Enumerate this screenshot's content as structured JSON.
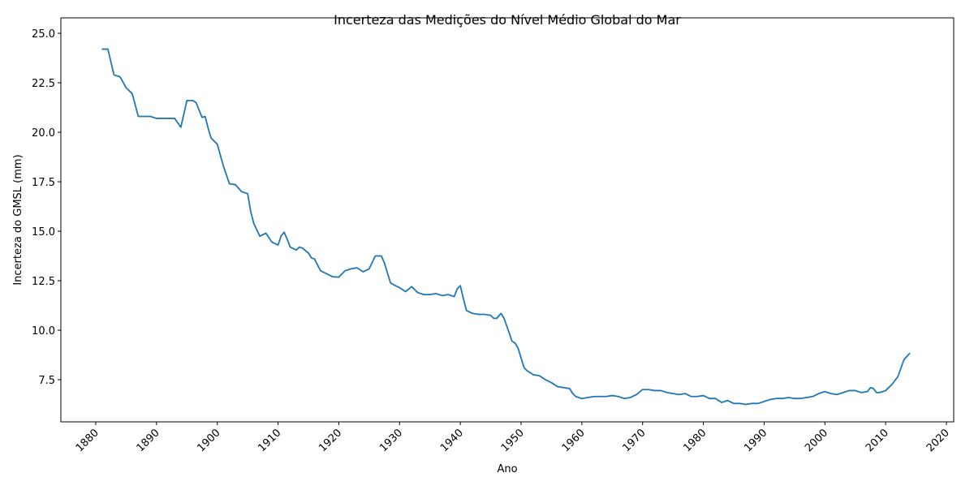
{
  "chart_data": {
    "type": "line",
    "title": "Incerteza das Medições do Nível Médio Global do Mar",
    "x_label": "Ano",
    "y_label": "Incerteza do GMSL (mm)",
    "grid": false,
    "xlim": [
      1874.26,
      2021.2
    ],
    "ylim": [
      5.37,
      25.78
    ],
    "xticks": [
      1880,
      1890,
      1900,
      1910,
      1920,
      1930,
      1940,
      1950,
      1960,
      1970,
      1980,
      1990,
      2000,
      2010,
      2020
    ],
    "yticks": [
      7.5,
      {
        "value": 10,
        "label": "10.0"
      },
      12.5,
      {
        "value": 15,
        "label": "15.0"
      },
      17.5,
      {
        "value": 20,
        "label": "20.0"
      },
      22.5,
      {
        "value": 25,
        "label": "25.0"
      }
    ],
    "series": [
      {
        "color": "#1f77b4",
        "x": [
          1881,
          1882,
          1883,
          1884,
          1885,
          1886,
          1887,
          1888,
          1889,
          1890,
          1891,
          1892,
          1893,
          1894,
          1895,
          1896,
          1896.5,
          1897.5,
          1898,
          1898.5,
          1899,
          1900,
          1901,
          1902,
          1903,
          1904,
          1905,
          1905.5,
          1906,
          1907,
          1908,
          1909,
          1910,
          1910.5,
          1911,
          1911.5,
          1912,
          1913,
          1913.5,
          1914,
          1915,
          1915.5,
          1916,
          1917,
          1918,
          1919,
          1920,
          1921,
          1922,
          1923,
          1924,
          1925,
          1926,
          1927,
          1927.5,
          1928,
          1928.5,
          1929,
          1930,
          1931,
          1932,
          1933,
          1934,
          1935,
          1936,
          1937,
          1938,
          1939,
          1939.5,
          1940,
          1940.5,
          1941,
          1942,
          1943,
          1944,
          1945,
          1945.5,
          1946,
          1946.7,
          1947.2,
          1948,
          1948.5,
          1949,
          1949.5,
          1950,
          1950.5,
          1951,
          1952,
          1953,
          1954,
          1955,
          1956,
          1957,
          1958,
          1958.5,
          1959,
          1960,
          1961,
          1962,
          1963,
          1964,
          1965,
          1966,
          1967,
          1968,
          1969,
          1970,
          1971,
          1972,
          1973,
          1974,
          1975,
          1976,
          1977,
          1978,
          1979,
          1980,
          1981,
          1982,
          1983,
          1984,
          1985,
          1986,
          1987,
          1988,
          1989,
          1990,
          1991,
          1992,
          1993,
          1994,
          1995,
          1996,
          1997,
          1998,
          1999,
          2000,
          2001,
          2002,
          2003,
          2004,
          2005,
          2006,
          2007,
          2007.5,
          2008,
          2008.5,
          2009,
          2010,
          2011,
          2012,
          2013,
          2014
        ],
        "values": [
          24.2,
          24.2,
          22.9,
          22.8,
          22.25,
          21.95,
          20.8,
          20.8,
          20.8,
          20.7,
          20.7,
          20.7,
          20.7,
          20.25,
          21.6,
          21.6,
          21.5,
          20.75,
          20.8,
          20.2,
          19.7,
          19.4,
          18.3,
          17.4,
          17.35,
          17.0,
          16.9,
          16.0,
          15.4,
          14.75,
          14.9,
          14.45,
          14.3,
          14.75,
          14.95,
          14.6,
          14.2,
          14.05,
          14.2,
          14.15,
          13.9,
          13.65,
          13.6,
          13.0,
          12.85,
          12.7,
          12.68,
          13.0,
          13.1,
          13.15,
          12.95,
          13.1,
          13.75,
          13.75,
          13.4,
          12.9,
          12.4,
          12.3,
          12.15,
          11.95,
          12.2,
          11.9,
          11.8,
          11.8,
          11.85,
          11.75,
          11.8,
          11.7,
          12.1,
          12.25,
          11.6,
          11.0,
          10.85,
          10.8,
          10.8,
          10.75,
          10.6,
          10.6,
          10.85,
          10.6,
          9.9,
          9.45,
          9.35,
          9.1,
          8.6,
          8.1,
          7.95,
          7.75,
          7.7,
          7.5,
          7.35,
          7.15,
          7.1,
          7.05,
          6.8,
          6.65,
          6.55,
          6.6,
          6.65,
          6.65,
          6.65,
          6.7,
          6.65,
          6.55,
          6.6,
          6.75,
          7.0,
          7.0,
          6.95,
          6.95,
          6.85,
          6.8,
          6.75,
          6.8,
          6.65,
          6.65,
          6.7,
          6.55,
          6.55,
          6.35,
          6.45,
          6.3,
          6.3,
          6.25,
          6.3,
          6.3,
          6.4,
          6.5,
          6.55,
          6.55,
          6.6,
          6.55,
          6.55,
          6.6,
          6.65,
          6.8,
          6.9,
          6.8,
          6.75,
          6.85,
          6.95,
          6.95,
          6.85,
          6.9,
          7.1,
          7.05,
          6.85,
          6.85,
          6.95,
          7.25,
          7.65,
          8.5,
          8.85
        ]
      }
    ]
  }
}
